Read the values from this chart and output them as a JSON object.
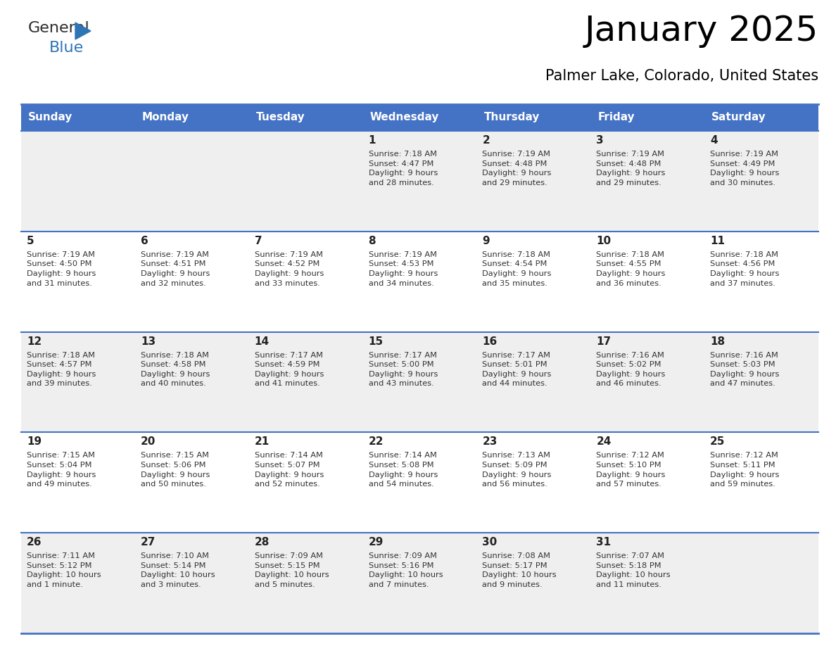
{
  "title": "January 2025",
  "subtitle": "Palmer Lake, Colorado, United States",
  "days_of_week": [
    "Sunday",
    "Monday",
    "Tuesday",
    "Wednesday",
    "Thursday",
    "Friday",
    "Saturday"
  ],
  "header_bg": "#4472C4",
  "header_text_color": "#FFFFFF",
  "row_bg_odd": "#EFEFEF",
  "row_bg_even": "#FFFFFF",
  "cell_text_color": "#333333",
  "day_number_color": "#222222",
  "divider_color": "#4472C4",
  "calendar_data": [
    [
      {
        "day": null,
        "info": null
      },
      {
        "day": null,
        "info": null
      },
      {
        "day": null,
        "info": null
      },
      {
        "day": 1,
        "info": "Sunrise: 7:18 AM\nSunset: 4:47 PM\nDaylight: 9 hours\nand 28 minutes."
      },
      {
        "day": 2,
        "info": "Sunrise: 7:19 AM\nSunset: 4:48 PM\nDaylight: 9 hours\nand 29 minutes."
      },
      {
        "day": 3,
        "info": "Sunrise: 7:19 AM\nSunset: 4:48 PM\nDaylight: 9 hours\nand 29 minutes."
      },
      {
        "day": 4,
        "info": "Sunrise: 7:19 AM\nSunset: 4:49 PM\nDaylight: 9 hours\nand 30 minutes."
      }
    ],
    [
      {
        "day": 5,
        "info": "Sunrise: 7:19 AM\nSunset: 4:50 PM\nDaylight: 9 hours\nand 31 minutes."
      },
      {
        "day": 6,
        "info": "Sunrise: 7:19 AM\nSunset: 4:51 PM\nDaylight: 9 hours\nand 32 minutes."
      },
      {
        "day": 7,
        "info": "Sunrise: 7:19 AM\nSunset: 4:52 PM\nDaylight: 9 hours\nand 33 minutes."
      },
      {
        "day": 8,
        "info": "Sunrise: 7:19 AM\nSunset: 4:53 PM\nDaylight: 9 hours\nand 34 minutes."
      },
      {
        "day": 9,
        "info": "Sunrise: 7:18 AM\nSunset: 4:54 PM\nDaylight: 9 hours\nand 35 minutes."
      },
      {
        "day": 10,
        "info": "Sunrise: 7:18 AM\nSunset: 4:55 PM\nDaylight: 9 hours\nand 36 minutes."
      },
      {
        "day": 11,
        "info": "Sunrise: 7:18 AM\nSunset: 4:56 PM\nDaylight: 9 hours\nand 37 minutes."
      }
    ],
    [
      {
        "day": 12,
        "info": "Sunrise: 7:18 AM\nSunset: 4:57 PM\nDaylight: 9 hours\nand 39 minutes."
      },
      {
        "day": 13,
        "info": "Sunrise: 7:18 AM\nSunset: 4:58 PM\nDaylight: 9 hours\nand 40 minutes."
      },
      {
        "day": 14,
        "info": "Sunrise: 7:17 AM\nSunset: 4:59 PM\nDaylight: 9 hours\nand 41 minutes."
      },
      {
        "day": 15,
        "info": "Sunrise: 7:17 AM\nSunset: 5:00 PM\nDaylight: 9 hours\nand 43 minutes."
      },
      {
        "day": 16,
        "info": "Sunrise: 7:17 AM\nSunset: 5:01 PM\nDaylight: 9 hours\nand 44 minutes."
      },
      {
        "day": 17,
        "info": "Sunrise: 7:16 AM\nSunset: 5:02 PM\nDaylight: 9 hours\nand 46 minutes."
      },
      {
        "day": 18,
        "info": "Sunrise: 7:16 AM\nSunset: 5:03 PM\nDaylight: 9 hours\nand 47 minutes."
      }
    ],
    [
      {
        "day": 19,
        "info": "Sunrise: 7:15 AM\nSunset: 5:04 PM\nDaylight: 9 hours\nand 49 minutes."
      },
      {
        "day": 20,
        "info": "Sunrise: 7:15 AM\nSunset: 5:06 PM\nDaylight: 9 hours\nand 50 minutes."
      },
      {
        "day": 21,
        "info": "Sunrise: 7:14 AM\nSunset: 5:07 PM\nDaylight: 9 hours\nand 52 minutes."
      },
      {
        "day": 22,
        "info": "Sunrise: 7:14 AM\nSunset: 5:08 PM\nDaylight: 9 hours\nand 54 minutes."
      },
      {
        "day": 23,
        "info": "Sunrise: 7:13 AM\nSunset: 5:09 PM\nDaylight: 9 hours\nand 56 minutes."
      },
      {
        "day": 24,
        "info": "Sunrise: 7:12 AM\nSunset: 5:10 PM\nDaylight: 9 hours\nand 57 minutes."
      },
      {
        "day": 25,
        "info": "Sunrise: 7:12 AM\nSunset: 5:11 PM\nDaylight: 9 hours\nand 59 minutes."
      }
    ],
    [
      {
        "day": 26,
        "info": "Sunrise: 7:11 AM\nSunset: 5:12 PM\nDaylight: 10 hours\nand 1 minute."
      },
      {
        "day": 27,
        "info": "Sunrise: 7:10 AM\nSunset: 5:14 PM\nDaylight: 10 hours\nand 3 minutes."
      },
      {
        "day": 28,
        "info": "Sunrise: 7:09 AM\nSunset: 5:15 PM\nDaylight: 10 hours\nand 5 minutes."
      },
      {
        "day": 29,
        "info": "Sunrise: 7:09 AM\nSunset: 5:16 PM\nDaylight: 10 hours\nand 7 minutes."
      },
      {
        "day": 30,
        "info": "Sunrise: 7:08 AM\nSunset: 5:17 PM\nDaylight: 10 hours\nand 9 minutes."
      },
      {
        "day": 31,
        "info": "Sunrise: 7:07 AM\nSunset: 5:18 PM\nDaylight: 10 hours\nand 11 minutes."
      },
      {
        "day": null,
        "info": null
      }
    ]
  ],
  "logo_color_general": "#2b2b2b",
  "logo_color_blue": "#2E75B6",
  "logo_triangle_color": "#2E75B6",
  "fig_width": 11.88,
  "fig_height": 9.18,
  "dpi": 100
}
